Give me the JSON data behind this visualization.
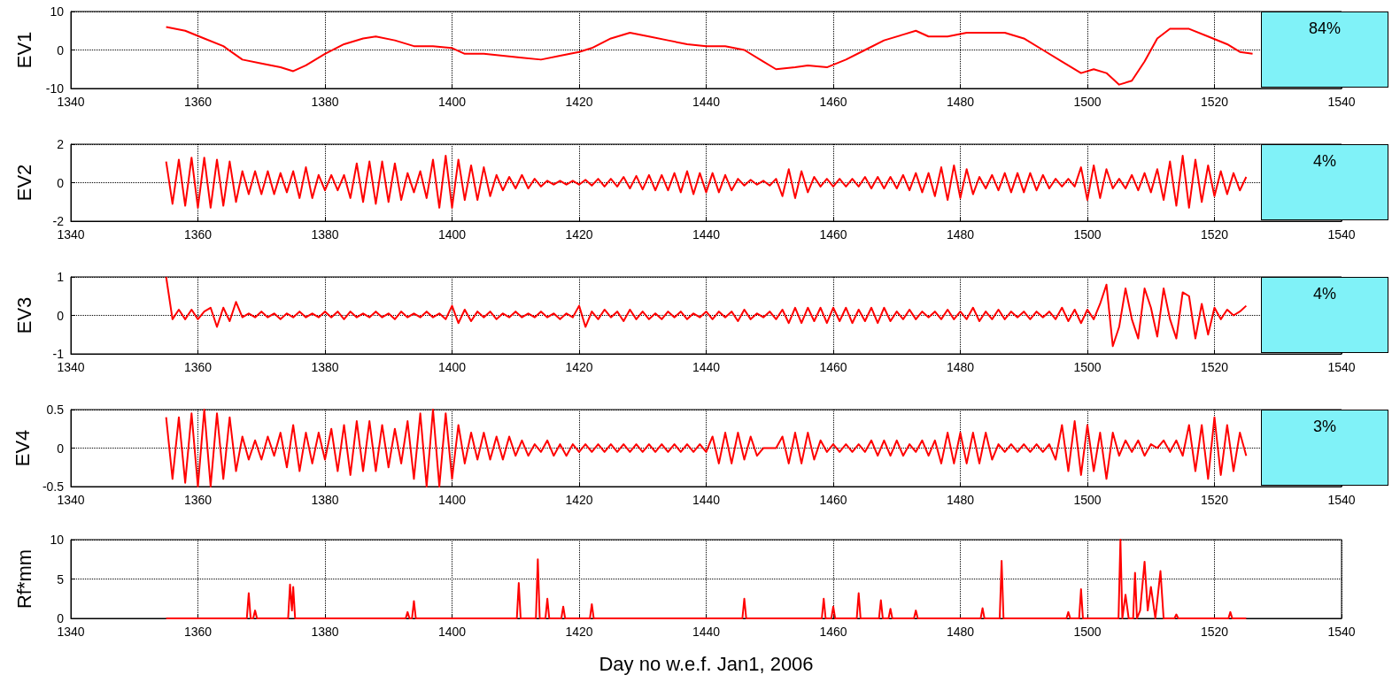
{
  "chart_data": [
    {
      "type": "line",
      "ylabel": "EV1",
      "annotations": [
        "84%"
      ],
      "xlim": [
        1340,
        1540
      ],
      "xticks": [
        1340,
        1360,
        1380,
        1400,
        1420,
        1440,
        1460,
        1480,
        1500,
        1520,
        1540
      ],
      "ylim": [
        -10,
        10
      ],
      "yticks": [
        -10,
        0,
        10
      ],
      "grid": true,
      "x": [
        1355,
        1358,
        1361,
        1364,
        1367,
        1370,
        1373,
        1375,
        1377,
        1380,
        1383,
        1386,
        1388,
        1391,
        1394,
        1397,
        1400,
        1402,
        1405,
        1408,
        1411,
        1414,
        1417,
        1420,
        1422,
        1425,
        1428,
        1431,
        1434,
        1437,
        1440,
        1443,
        1446,
        1449,
        1451,
        1454,
        1456,
        1459,
        1462,
        1465,
        1468,
        1471,
        1473,
        1475,
        1478,
        1481,
        1484,
        1487,
        1490,
        1493,
        1496,
        1499,
        1501,
        1503,
        1505,
        1507,
        1509,
        1511,
        1513,
        1516,
        1519,
        1522,
        1524,
        1526
      ],
      "series": [
        {
          "color": "#ff0000",
          "values": [
            6,
            5,
            3,
            1,
            -2.5,
            -3.5,
            -4.5,
            -5.5,
            -4,
            -1,
            1.5,
            3,
            3.5,
            2.5,
            1,
            1,
            0.5,
            -1,
            -1,
            -1.5,
            -2,
            -2.5,
            -1.5,
            -0.5,
            0.5,
            3,
            4.5,
            3.5,
            2.5,
            1.5,
            1,
            1,
            0,
            -3,
            -5,
            -4.5,
            -4,
            -4.5,
            -2.5,
            0,
            2.5,
            4,
            5,
            3.5,
            3.5,
            4.5,
            4.5,
            4.5,
            3,
            0,
            -3,
            -6,
            -5,
            -6,
            -9,
            -8,
            -3,
            3,
            5.5,
            5.5,
            3.5,
            1.5,
            -0.5,
            -1
          ]
        }
      ]
    },
    {
      "type": "line",
      "ylabel": "EV2",
      "annotations": [
        "4%"
      ],
      "xlim": [
        1340,
        1540
      ],
      "xticks": [
        1340,
        1360,
        1380,
        1400,
        1420,
        1440,
        1460,
        1480,
        1500,
        1520,
        1540
      ],
      "ylim": [
        -2,
        2
      ],
      "yticks": [
        -2,
        0,
        2
      ],
      "grid": true,
      "x": [
        1355,
        1356,
        1357,
        1358,
        1359,
        1360,
        1361,
        1362,
        1363,
        1364,
        1365,
        1366,
        1367,
        1368,
        1369,
        1370,
        1371,
        1372,
        1373,
        1374,
        1375,
        1376,
        1377,
        1378,
        1379,
        1380,
        1381,
        1382,
        1383,
        1384,
        1385,
        1386,
        1387,
        1388,
        1389,
        1390,
        1391,
        1392,
        1393,
        1394,
        1395,
        1396,
        1397,
        1398,
        1399,
        1400,
        1401,
        1402,
        1403,
        1404,
        1405,
        1406,
        1407,
        1408,
        1409,
        1410,
        1411,
        1412,
        1413,
        1414,
        1415,
        1416,
        1417,
        1418,
        1419,
        1420,
        1421,
        1422,
        1423,
        1424,
        1425,
        1426,
        1427,
        1428,
        1429,
        1430,
        1431,
        1432,
        1433,
        1434,
        1435,
        1436,
        1437,
        1438,
        1439,
        1440,
        1441,
        1442,
        1443,
        1444,
        1445,
        1446,
        1447,
        1448,
        1449,
        1450,
        1451,
        1452,
        1453,
        1454,
        1455,
        1456,
        1457,
        1458,
        1459,
        1460,
        1461,
        1462,
        1463,
        1464,
        1465,
        1466,
        1467,
        1468,
        1469,
        1470,
        1471,
        1472,
        1473,
        1474,
        1475,
        1476,
        1477,
        1478,
        1479,
        1480,
        1481,
        1482,
        1483,
        1484,
        1485,
        1486,
        1487,
        1488,
        1489,
        1490,
        1491,
        1492,
        1493,
        1494,
        1495,
        1496,
        1497,
        1498,
        1499,
        1500,
        1501,
        1502,
        1503,
        1504,
        1505,
        1506,
        1507,
        1508,
        1509,
        1510,
        1511,
        1512,
        1513,
        1514,
        1515,
        1516,
        1517,
        1518,
        1519,
        1520,
        1521,
        1522,
        1523,
        1524,
        1525
      ],
      "series": [
        {
          "color": "#ff0000",
          "values": [
            1.1,
            -1.1,
            1.2,
            -1.2,
            1.3,
            -1.3,
            1.3,
            -1.3,
            1.2,
            -1.2,
            1.1,
            -1,
            0.6,
            -0.6,
            0.6,
            -0.6,
            0.6,
            -0.6,
            0.5,
            -0.5,
            0.6,
            -0.8,
            0.8,
            -0.8,
            0.4,
            -0.4,
            0.4,
            -0.4,
            0.4,
            -0.8,
            1,
            -1,
            1.1,
            -1.1,
            1.1,
            -1,
            1,
            -0.9,
            0.5,
            -0.5,
            0.6,
            -0.8,
            1.2,
            -1.3,
            1.4,
            -1.3,
            1.2,
            -0.9,
            0.9,
            -0.9,
            0.8,
            -0.7,
            0.4,
            -0.4,
            0.3,
            -0.3,
            0.4,
            -0.3,
            0.2,
            -0.2,
            0.1,
            -0.1,
            0.1,
            -0.1,
            0.1,
            -0.1,
            0.15,
            -0.15,
            0.2,
            -0.2,
            0.2,
            -0.2,
            0.3,
            -0.3,
            0.35,
            -0.35,
            0.4,
            -0.4,
            0.4,
            -0.4,
            0.5,
            -0.5,
            0.6,
            -0.6,
            0.5,
            -0.5,
            0.5,
            -0.5,
            0.4,
            -0.4,
            0.2,
            -0.15,
            0.15,
            -0.1,
            0.1,
            -0.15,
            0.2,
            -0.7,
            0.7,
            -0.8,
            0.6,
            -0.5,
            0.3,
            -0.2,
            0.2,
            -0.2,
            0.2,
            -0.2,
            0.2,
            -0.2,
            0.3,
            -0.3,
            0.3,
            -0.3,
            0.3,
            -0.3,
            0.4,
            -0.4,
            0.5,
            -0.5,
            0.5,
            -0.7,
            0.8,
            -0.9,
            0.9,
            -0.8,
            0.7,
            -0.6,
            0.3,
            -0.3,
            0.4,
            -0.4,
            0.5,
            -0.5,
            0.5,
            -0.5,
            0.5,
            -0.4,
            0.4,
            -0.3,
            0.2,
            -0.2,
            0.2,
            -0.2,
            0.8,
            -0.9,
            0.9,
            -0.8,
            0.7,
            -0.3,
            0.2,
            -0.3,
            0.4,
            -0.4,
            0.5,
            -0.5,
            0.7,
            -0.9,
            1.1,
            -1.2,
            1.4,
            -1.3,
            1.2,
            -1,
            0.9,
            -0.7,
            0.6,
            -0.6,
            0.5,
            -0.4,
            0.3
          ]
        }
      ]
    },
    {
      "type": "line",
      "ylabel": "EV3",
      "annotations": [
        "4%"
      ],
      "xlim": [
        1340,
        1540
      ],
      "xticks": [
        1340,
        1360,
        1380,
        1400,
        1420,
        1440,
        1460,
        1480,
        1500,
        1520,
        1540
      ],
      "ylim": [
        -1,
        1
      ],
      "yticks": [
        -1,
        0,
        1
      ],
      "grid": true,
      "x": [
        1355,
        1356,
        1357,
        1358,
        1359,
        1360,
        1361,
        1362,
        1363,
        1364,
        1365,
        1366,
        1367,
        1368,
        1369,
        1370,
        1371,
        1372,
        1373,
        1374,
        1375,
        1376,
        1377,
        1378,
        1379,
        1380,
        1381,
        1382,
        1383,
        1384,
        1385,
        1386,
        1387,
        1388,
        1389,
        1390,
        1391,
        1392,
        1393,
        1394,
        1395,
        1396,
        1397,
        1398,
        1399,
        1400,
        1401,
        1402,
        1403,
        1404,
        1405,
        1406,
        1407,
        1408,
        1409,
        1410,
        1411,
        1412,
        1413,
        1414,
        1415,
        1416,
        1417,
        1418,
        1419,
        1420,
        1421,
        1422,
        1423,
        1424,
        1425,
        1426,
        1427,
        1428,
        1429,
        1430,
        1431,
        1432,
        1433,
        1434,
        1435,
        1436,
        1437,
        1438,
        1439,
        1440,
        1441,
        1442,
        1443,
        1444,
        1445,
        1446,
        1447,
        1448,
        1449,
        1450,
        1451,
        1452,
        1453,
        1454,
        1455,
        1456,
        1457,
        1458,
        1459,
        1460,
        1461,
        1462,
        1463,
        1464,
        1465,
        1466,
        1467,
        1468,
        1469,
        1470,
        1471,
        1472,
        1473,
        1474,
        1475,
        1476,
        1477,
        1478,
        1479,
        1480,
        1481,
        1482,
        1483,
        1484,
        1485,
        1486,
        1487,
        1488,
        1489,
        1490,
        1491,
        1492,
        1493,
        1494,
        1495,
        1496,
        1497,
        1498,
        1499,
        1500,
        1501,
        1502,
        1503,
        1504,
        1505,
        1506,
        1507,
        1508,
        1509,
        1510,
        1511,
        1512,
        1513,
        1514,
        1515,
        1516,
        1517,
        1518,
        1519,
        1520,
        1521,
        1522,
        1523,
        1524,
        1525
      ],
      "series": [
        {
          "color": "#ff0000",
          "values": [
            1,
            -0.1,
            0.15,
            -0.1,
            0.15,
            -0.1,
            0.1,
            0.2,
            -0.3,
            0.2,
            -0.15,
            0.35,
            -0.05,
            0.05,
            -0.05,
            0.1,
            -0.05,
            0.05,
            -0.1,
            0.05,
            -0.05,
            0.1,
            -0.05,
            0.05,
            -0.05,
            0.1,
            -0.05,
            0.1,
            -0.1,
            0.1,
            -0.05,
            0.05,
            -0.05,
            0.1,
            -0.05,
            0.05,
            -0.1,
            0.1,
            -0.05,
            0.05,
            -0.05,
            0.1,
            -0.05,
            0.05,
            -0.1,
            0.25,
            -0.2,
            0.15,
            -0.15,
            0.1,
            -0.05,
            0.1,
            -0.1,
            0.05,
            -0.05,
            0.1,
            -0.05,
            0.05,
            -0.05,
            0.1,
            -0.05,
            0.05,
            -0.1,
            0.05,
            -0.05,
            0.25,
            -0.3,
            0.1,
            -0.1,
            0.15,
            -0.05,
            0.1,
            -0.15,
            0.15,
            -0.1,
            0.1,
            -0.1,
            0.05,
            -0.1,
            0.1,
            -0.05,
            0.1,
            -0.1,
            0.05,
            -0.05,
            0.1,
            -0.1,
            0.1,
            -0.05,
            0.1,
            -0.15,
            0.15,
            -0.1,
            0.05,
            -0.05,
            0.1,
            -0.1,
            0.15,
            -0.2,
            0.2,
            -0.2,
            0.2,
            -0.15,
            0.2,
            -0.2,
            0.2,
            -0.15,
            0.2,
            -0.2,
            0.15,
            -0.15,
            0.2,
            -0.2,
            0.2,
            -0.15,
            0.1,
            -0.1,
            0.15,
            -0.1,
            0.1,
            -0.05,
            0.1,
            -0.1,
            0.15,
            -0.1,
            0.1,
            -0.1,
            0.2,
            -0.15,
            0.1,
            -0.1,
            0.15,
            -0.1,
            0.1,
            -0.05,
            0.1,
            -0.1,
            0.1,
            -0.05,
            0.1,
            -0.1,
            0.2,
            -0.15,
            0.15,
            -0.2,
            0.15,
            -0.1,
            0.3,
            0.8,
            -0.8,
            -0.3,
            0.7,
            -0.1,
            -0.6,
            0.7,
            0.2,
            -0.55,
            0.7,
            -0.1,
            -0.6,
            0.6,
            0.5,
            -0.6,
            0.3,
            -0.5,
            0.2,
            -0.1,
            0.15,
            0,
            0.1,
            0.25
          ]
        }
      ]
    },
    {
      "type": "line",
      "ylabel": "EV4",
      "annotations": [
        "3%"
      ],
      "xlim": [
        1340,
        1540
      ],
      "xticks": [
        1340,
        1360,
        1380,
        1400,
        1420,
        1440,
        1460,
        1480,
        1500,
        1520,
        1540
      ],
      "ylim": [
        -0.5,
        0.5
      ],
      "yticks": [
        -0.5,
        0,
        0.5
      ],
      "grid": true,
      "x": [
        1355,
        1356,
        1357,
        1358,
        1359,
        1360,
        1361,
        1362,
        1363,
        1364,
        1365,
        1366,
        1367,
        1368,
        1369,
        1370,
        1371,
        1372,
        1373,
        1374,
        1375,
        1376,
        1377,
        1378,
        1379,
        1380,
        1381,
        1382,
        1383,
        1384,
        1385,
        1386,
        1387,
        1388,
        1389,
        1390,
        1391,
        1392,
        1393,
        1394,
        1395,
        1396,
        1397,
        1398,
        1399,
        1400,
        1401,
        1402,
        1403,
        1404,
        1405,
        1406,
        1407,
        1408,
        1409,
        1410,
        1411,
        1412,
        1413,
        1414,
        1415,
        1416,
        1417,
        1418,
        1419,
        1420,
        1421,
        1422,
        1423,
        1424,
        1425,
        1426,
        1427,
        1428,
        1429,
        1430,
        1431,
        1432,
        1433,
        1434,
        1435,
        1436,
        1437,
        1438,
        1439,
        1440,
        1441,
        1442,
        1443,
        1444,
        1445,
        1446,
        1447,
        1448,
        1449,
        1450,
        1451,
        1452,
        1453,
        1454,
        1455,
        1456,
        1457,
        1458,
        1459,
        1460,
        1461,
        1462,
        1463,
        1464,
        1465,
        1466,
        1467,
        1468,
        1469,
        1470,
        1471,
        1472,
        1473,
        1474,
        1475,
        1476,
        1477,
        1478,
        1479,
        1480,
        1481,
        1482,
        1483,
        1484,
        1485,
        1486,
        1487,
        1488,
        1489,
        1490,
        1491,
        1492,
        1493,
        1494,
        1495,
        1496,
        1497,
        1498,
        1499,
        1500,
        1501,
        1502,
        1503,
        1504,
        1505,
        1506,
        1507,
        1508,
        1509,
        1510,
        1511,
        1512,
        1513,
        1514,
        1515,
        1516,
        1517,
        1518,
        1519,
        1520,
        1521,
        1522,
        1523,
        1524,
        1525
      ],
      "series": [
        {
          "color": "#ff0000",
          "values": [
            0.4,
            -0.4,
            0.4,
            -0.45,
            0.45,
            -0.5,
            0.5,
            -0.5,
            0.45,
            -0.4,
            0.4,
            -0.3,
            0.15,
            -0.15,
            0.1,
            -0.15,
            0.15,
            -0.1,
            0.2,
            -0.25,
            0.3,
            -0.3,
            0.2,
            -0.2,
            0.2,
            -0.15,
            0.25,
            -0.3,
            0.3,
            -0.35,
            0.35,
            -0.3,
            0.35,
            -0.3,
            0.3,
            -0.25,
            0.25,
            -0.2,
            0.35,
            -0.4,
            0.45,
            -0.5,
            0.5,
            -0.5,
            0.45,
            -0.4,
            0.3,
            -0.2,
            0.2,
            -0.15,
            0.2,
            -0.15,
            0.15,
            -0.15,
            0.15,
            -0.1,
            0.1,
            -0.1,
            0.05,
            -0.05,
            0.1,
            -0.1,
            0.05,
            -0.1,
            0.05,
            -0.05,
            0.05,
            -0.05,
            0.05,
            -0.05,
            0.05,
            -0.05,
            0.05,
            -0.05,
            0.05,
            -0.05,
            0.05,
            -0.05,
            0.05,
            -0.05,
            0.05,
            -0.05,
            0.05,
            -0.05,
            0.05,
            -0.05,
            0.15,
            -0.2,
            0.2,
            -0.2,
            0.2,
            -0.15,
            0.15,
            -0.1,
            0,
            0,
            0,
            0.15,
            -0.2,
            0.2,
            -0.2,
            0.2,
            -0.15,
            0.1,
            -0.05,
            0.05,
            -0.05,
            0.05,
            -0.05,
            0.05,
            -0.05,
            0.1,
            -0.1,
            0.1,
            -0.1,
            0.1,
            -0.1,
            0.05,
            -0.05,
            0.1,
            -0.1,
            0.1,
            -0.2,
            0.2,
            -0.2,
            0.2,
            -0.2,
            0.2,
            -0.2,
            0.2,
            -0.15,
            0.05,
            -0.05,
            0.05,
            -0.05,
            0.05,
            -0.05,
            0.05,
            -0.05,
            0.05,
            -0.15,
            0.3,
            -0.3,
            0.35,
            -0.35,
            0.3,
            -0.3,
            0.2,
            -0.4,
            0.2,
            -0.1,
            0.1,
            -0.05,
            0.1,
            -0.1,
            0.05,
            0,
            0.1,
            -0.05,
            0.1,
            -0.1,
            0.3,
            -0.3,
            0.3,
            -0.4,
            0.4,
            -0.35,
            0.3,
            -0.3,
            0.2,
            -0.1
          ]
        }
      ]
    },
    {
      "type": "line",
      "ylabel": "Rf*mm",
      "xlabel": "Day no w.e.f. Jan1, 2006",
      "xlim": [
        1340,
        1540
      ],
      "xticks": [
        1340,
        1360,
        1380,
        1400,
        1420,
        1440,
        1460,
        1480,
        1500,
        1520,
        1540
      ],
      "ylim": [
        0,
        10
      ],
      "yticks": [
        0,
        5,
        10
      ],
      "grid": true,
      "x": [
        1355,
        1367.7,
        1368,
        1368.3,
        1368.7,
        1369,
        1369.3,
        1374.2,
        1374.5,
        1374.8,
        1375,
        1375.3,
        1392.7,
        1393,
        1393.3,
        1393.7,
        1394,
        1394.3,
        1410.2,
        1410.5,
        1410.8,
        1413.2,
        1413.5,
        1413.8,
        1414.7,
        1415,
        1415.3,
        1417.2,
        1417.5,
        1417.8,
        1421.7,
        1422,
        1422.3,
        1445.7,
        1446,
        1446.3,
        1458.2,
        1458.5,
        1458.8,
        1459.7,
        1460,
        1460.3,
        1463.7,
        1464,
        1464.3,
        1467.2,
        1467.5,
        1467.8,
        1468.7,
        1469,
        1469.3,
        1472.7,
        1473,
        1473.3,
        1483.2,
        1483.5,
        1483.8,
        1486.2,
        1486.5,
        1486.8,
        1496.7,
        1497,
        1497.3,
        1498.7,
        1499,
        1499.3,
        1504.9,
        1505.2,
        1505.5,
        1506,
        1506.5,
        1507.2,
        1507.5,
        1507.8,
        1508.3,
        1509,
        1509.5,
        1510,
        1510.7,
        1511.5,
        1512,
        1513.7,
        1514,
        1514.3,
        1522.2,
        1522.5,
        1522.8,
        1525
      ],
      "series": [
        {
          "color": "#ff0000",
          "values": [
            0,
            0,
            3.2,
            0,
            0,
            1,
            0,
            0,
            4.3,
            1,
            4,
            0,
            0,
            0.8,
            0,
            0,
            2.2,
            0,
            0,
            4.5,
            0,
            0,
            7.5,
            0,
            0,
            2.5,
            0,
            0,
            1.5,
            0,
            0,
            1.8,
            0,
            0,
            2.5,
            0,
            0,
            2.5,
            0,
            0,
            1.5,
            0,
            0,
            3.2,
            0,
            0,
            2.3,
            0,
            0,
            1.2,
            0,
            0,
            1,
            0,
            0,
            1.3,
            0,
            0,
            7.3,
            0,
            0,
            0.8,
            0,
            0,
            3.7,
            0,
            0,
            10,
            0,
            3,
            0,
            0,
            5.8,
            0,
            1,
            7.2,
            1,
            4,
            0,
            6,
            0,
            0,
            0.5,
            0,
            0,
            0.8,
            0,
            0
          ]
        }
      ]
    }
  ]
}
